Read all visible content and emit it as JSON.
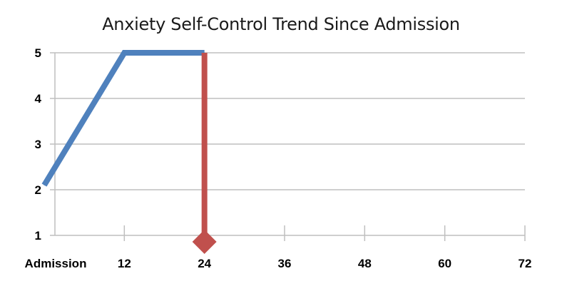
{
  "chart_data": {
    "type": "line",
    "title": "Anxiety Self-Control Trend Since Admission",
    "xlabel": "",
    "ylabel": "",
    "x_tick_labels": [
      "Admission",
      "12",
      "24",
      "36",
      "48",
      "60",
      "72"
    ],
    "x_tick_values": [
      0,
      12,
      24,
      36,
      48,
      60,
      72
    ],
    "y_tick_labels": [
      "1",
      "2",
      "3",
      "4",
      "5"
    ],
    "y_tick_values": [
      1,
      2,
      3,
      4,
      5
    ],
    "xlim": [
      0,
      72
    ],
    "ylim": [
      1,
      5
    ],
    "grid": "horizontal",
    "series": [
      {
        "x": [
          0,
          12,
          24
        ],
        "y": [
          2.1,
          5,
          5
        ],
        "color": "#4f81bd"
      }
    ],
    "marker": {
      "x": 24,
      "y_top": 5,
      "y_bottom": 1,
      "color": "#c0504d",
      "shape": "diamond"
    },
    "colors": {
      "grid": "#bfbfbf",
      "axis": "#bfbfbf"
    }
  }
}
